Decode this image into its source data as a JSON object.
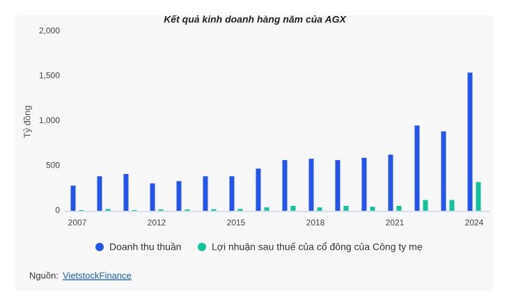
{
  "chart_data": {
    "type": "bar",
    "title": "Kết quả kinh doanh hàng năm của AGX",
    "y_label": "Tỷ đồng",
    "categories": [
      "2007",
      null,
      null,
      "2012",
      null,
      null,
      "2015",
      null,
      null,
      "2018",
      null,
      null,
      "2021",
      null,
      null,
      "2024"
    ],
    "series": [
      {
        "name": "Doanh thu thuần",
        "color": "#2255e8",
        "values": [
          280,
          385,
          410,
          305,
          330,
          385,
          385,
          470,
          565,
          580,
          565,
          590,
          625,
          950,
          885,
          1540
        ]
      },
      {
        "name": "Lợi nhuận sau thuế của cổ đông của Công ty mẹ",
        "color": "#13c39b",
        "values": [
          8,
          20,
          8,
          15,
          15,
          18,
          20,
          38,
          55,
          38,
          55,
          45,
          55,
          120,
          120,
          320
        ]
      }
    ],
    "ylim": [
      0,
      2000
    ],
    "yticks": [
      0,
      500,
      {
        "value": 1000,
        "label": "1,000"
      },
      {
        "value": 1500,
        "label": "1,500"
      },
      {
        "value": 2000,
        "label": "2,000"
      }
    ],
    "grid": false,
    "source_label": "Nguồn:",
    "source_link": "VietstockFinance"
  }
}
